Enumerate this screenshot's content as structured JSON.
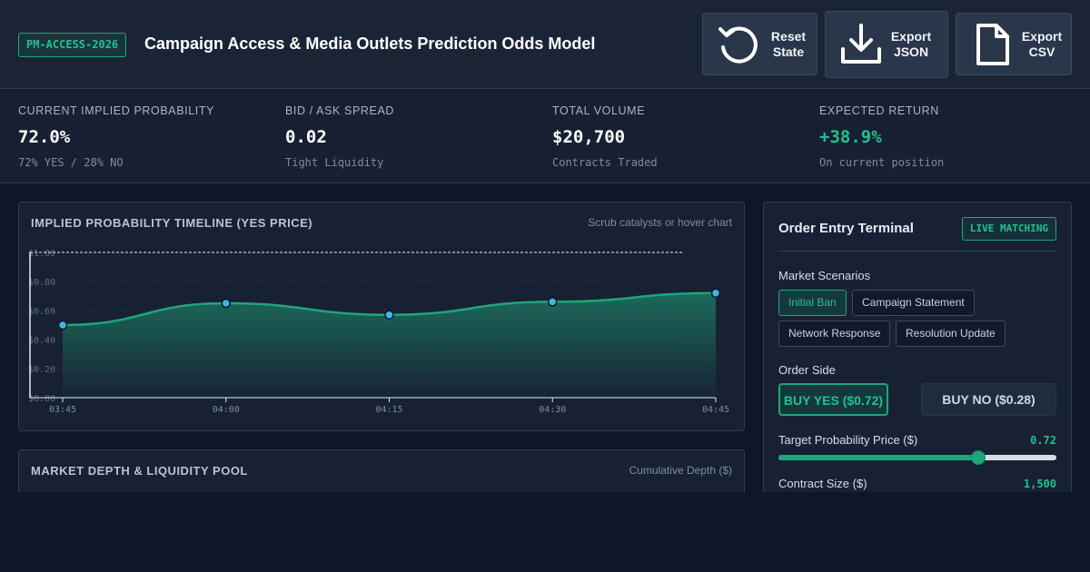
{
  "header": {
    "badge": "PM-ACCESS-2026",
    "title": "Campaign Access & Media Outlets Prediction Odds Model",
    "buttons": {
      "reset": "Reset\nState",
      "export_json": "Export\nJSON",
      "export_csv": "Export\nCSV"
    }
  },
  "stats": [
    {
      "label": "CURRENT IMPLIED PROBABILITY",
      "value": "72.0%",
      "sub": "72% YES / 28% NO"
    },
    {
      "label": "BID / ASK SPREAD",
      "value": "0.02",
      "sub": "Tight Liquidity"
    },
    {
      "label": "TOTAL VOLUME",
      "value": "$20,700",
      "sub": "Contracts Traded"
    },
    {
      "label": "EXPECTED RETURN",
      "value": "+38.9%",
      "sub": "On current position"
    }
  ],
  "timeline": {
    "title": "IMPLIED PROBABILITY TIMELINE (YES PRICE)",
    "hint": "Scrub catalysts or hover chart"
  },
  "depth": {
    "title": "MARKET DEPTH & LIQUIDITY POOL",
    "hint": "Cumulative Depth ($)"
  },
  "chart_data": {
    "type": "area",
    "x": [
      "03:45",
      "04:00",
      "04:15",
      "04:30",
      "04:45"
    ],
    "values": [
      0.5,
      0.65,
      0.57,
      0.66,
      0.72
    ],
    "yticks": [
      "$0.00",
      "$0.20",
      "$0.40",
      "$0.60",
      "$0.80",
      "$1.00"
    ],
    "ylim": [
      0,
      1
    ],
    "reference_line": 1.0,
    "grid": true,
    "colors": {
      "line": "#1fa57a",
      "point": "#3fb6e8"
    }
  },
  "order": {
    "title": "Order Entry Terminal",
    "badge": "LIVE MATCHING",
    "scenarios_label": "Market Scenarios",
    "scenarios": [
      "Initial Ban",
      "Campaign Statement",
      "Network Response",
      "Resolution Update"
    ],
    "active_scenario": "Initial Ban",
    "side_label": "Order Side",
    "buy_yes": "BUY YES ($0.72)",
    "buy_no": "BUY NO ($0.28)",
    "price_label": "Target Probability Price ($)",
    "price_value": "0.72",
    "price_fraction": 0.72,
    "size_label": "Contract Size ($)",
    "size_value": "1,500"
  },
  "colors": {
    "accent": "#1fa57a",
    "background": "#0e1628",
    "panel": "#172133"
  }
}
